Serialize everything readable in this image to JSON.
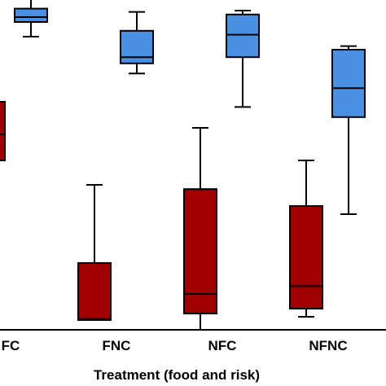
{
  "chart_data": {
    "type": "boxplot",
    "title": "",
    "xlabel": "Treatment (food and risk)",
    "ylabel": "",
    "categories": [
      "FC",
      "FNC",
      "NFC",
      "NFNC"
    ],
    "ylim": [
      0,
      100
    ],
    "grid": false,
    "legend": "none",
    "series": [
      {
        "color": "#4a90e2",
        "boxes": [
          {
            "category": "FC",
            "min": 90.0,
            "q1": 94.5,
            "median": 96.0,
            "q3": 98.6,
            "max": 101.5
          },
          {
            "category": "FNC",
            "min": 78.7,
            "q1": 81.8,
            "median": 83.7,
            "q3": 91.8,
            "max": 97.6
          },
          {
            "category": "NFC",
            "min": 68.4,
            "q1": 83.7,
            "median": 90.6,
            "q3": 96.8,
            "max": 98.0
          },
          {
            "category": "NFNC",
            "min": 35.5,
            "q1": 65.3,
            "median": 74.2,
            "q3": 86.0,
            "max": 87.1
          }
        ]
      },
      {
        "color": "#a00000",
        "boxes": [
          {
            "category": "FC",
            "min": 50.0,
            "q1": 52.0,
            "median": 60.0,
            "q3": 70.0,
            "max": 70.0
          },
          {
            "category": "FNC",
            "min": 3.0,
            "q1": 3.0,
            "median": 3.3,
            "q3": 20.5,
            "max": 44.5
          },
          {
            "category": "NFC",
            "min": 0.0,
            "q1": 5.0,
            "median": 11.0,
            "q3": 43.2,
            "max": 62.0
          },
          {
            "category": "NFNC",
            "min": 4.0,
            "q1": 6.5,
            "median": 13.4,
            "q3": 38.0,
            "max": 52.0
          }
        ]
      }
    ]
  },
  "colors": {
    "blue_box": "#4a90e2",
    "red_box": "#a00000",
    "axis": "#000000"
  }
}
